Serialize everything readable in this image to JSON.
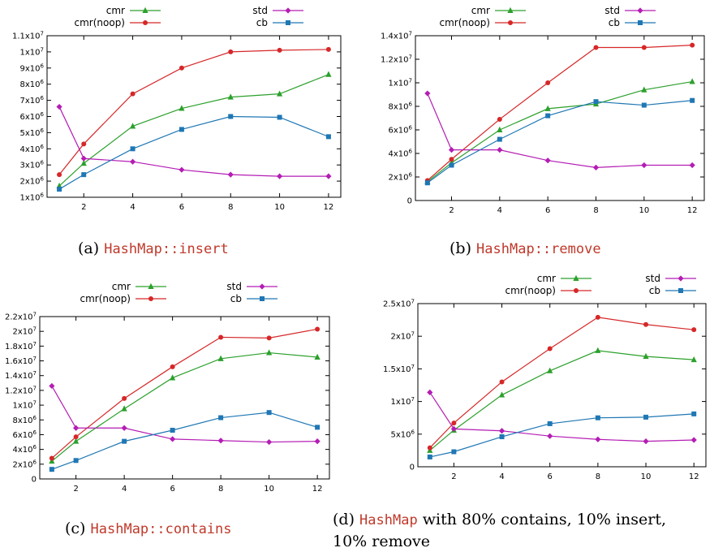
{
  "colors": {
    "cmr": "#2ca02c",
    "cmr(noop)": "#d62728",
    "std": "#b41db4",
    "cb": "#1f77b4",
    "code": "#c0392b"
  },
  "captions": {
    "a": {
      "prefix": "(a)",
      "code": "HashMap::insert",
      "rest": ""
    },
    "b": {
      "prefix": "(b)",
      "code": "HashMap::remove",
      "rest": ""
    },
    "c": {
      "prefix": "(c)",
      "code": "HashMap::contains",
      "rest": ""
    },
    "d": {
      "prefix": "(d)",
      "code": "HashMap",
      "rest": "with 80% contains, 10% insert, 10% remove"
    }
  },
  "chart_data": [
    {
      "id": "a",
      "type": "line",
      "x": [
        1,
        2,
        4,
        6,
        8,
        10,
        12
      ],
      "xticks": [
        2,
        4,
        6,
        8,
        10,
        12
      ],
      "xlim": [
        0.5,
        12.5
      ],
      "ylim": [
        1000000,
        11000000
      ],
      "yticks": [
        1000000,
        2000000,
        3000000,
        4000000,
        5000000,
        6000000,
        7000000,
        8000000,
        9000000,
        10000000,
        11000000
      ],
      "yticklabels": [
        "1x10^6",
        "2x10^6",
        "3x10^6",
        "4x10^6",
        "5x10^6",
        "6x10^6",
        "7x10^6",
        "8x10^6",
        "9x10^6",
        "1x10^7",
        "1.1x10^7"
      ],
      "legend_placement": "top",
      "series": [
        {
          "name": "cmr",
          "marker": "triangle",
          "values": [
            1700000,
            3100000,
            5400000,
            6500000,
            7200000,
            7400000,
            8600000
          ]
        },
        {
          "name": "cmr(noop)",
          "marker": "circle",
          "values": [
            2400000,
            4300000,
            7400000,
            9000000,
            10000000,
            10100000,
            10150000
          ]
        },
        {
          "name": "std",
          "marker": "diamond",
          "values": [
            6600000,
            3400000,
            3200000,
            2700000,
            2400000,
            2300000,
            2300000
          ]
        },
        {
          "name": "cb",
          "marker": "square",
          "values": [
            1500000,
            2400000,
            4000000,
            5200000,
            6000000,
            5950000,
            4750000
          ]
        }
      ]
    },
    {
      "id": "b",
      "type": "line",
      "x": [
        1,
        2,
        4,
        6,
        8,
        10,
        12
      ],
      "xticks": [
        2,
        4,
        6,
        8,
        10,
        12
      ],
      "xlim": [
        0.5,
        12.5
      ],
      "ylim": [
        0,
        14000000
      ],
      "yticks": [
        0,
        2000000,
        4000000,
        6000000,
        8000000,
        10000000,
        12000000,
        14000000
      ],
      "yticklabels": [
        "0",
        "2x10^6",
        "4x10^6",
        "6x10^6",
        "8x10^6",
        "1x10^7",
        "1.2x10^7",
        "1.4x10^7"
      ],
      "legend_placement": "top",
      "series": [
        {
          "name": "cmr",
          "marker": "triangle",
          "values": [
            1600000,
            3200000,
            6000000,
            7800000,
            8200000,
            9400000,
            10100000
          ]
        },
        {
          "name": "cmr(noop)",
          "marker": "circle",
          "values": [
            1700000,
            3500000,
            6900000,
            10000000,
            13000000,
            13000000,
            13200000
          ]
        },
        {
          "name": "std",
          "marker": "diamond",
          "values": [
            9100000,
            4300000,
            4300000,
            3400000,
            2800000,
            3000000,
            3000000
          ]
        },
        {
          "name": "cb",
          "marker": "square",
          "values": [
            1500000,
            3000000,
            5200000,
            7200000,
            8400000,
            8100000,
            8500000
          ]
        }
      ]
    },
    {
      "id": "c",
      "type": "line",
      "x": [
        1,
        2,
        4,
        6,
        8,
        10,
        12
      ],
      "xticks": [
        2,
        4,
        6,
        8,
        10,
        12
      ],
      "xlim": [
        0.5,
        12.5
      ],
      "ylim": [
        0,
        22000000
      ],
      "yticks": [
        0,
        2000000,
        4000000,
        6000000,
        8000000,
        10000000,
        12000000,
        14000000,
        16000000,
        18000000,
        20000000,
        22000000
      ],
      "yticklabels": [
        "0",
        "2x10^6",
        "4x10^6",
        "6x10^6",
        "8x10^6",
        "1x10^7",
        "1.2x10^7",
        "1.4x10^7",
        "1.6x10^7",
        "1.8x10^7",
        "2x10^7",
        "2.2x10^7"
      ],
      "legend_placement": "top",
      "series": [
        {
          "name": "cmr",
          "marker": "triangle",
          "values": [
            2400000,
            5100000,
            9500000,
            13700000,
            16300000,
            17100000,
            16500000
          ]
        },
        {
          "name": "cmr(noop)",
          "marker": "circle",
          "values": [
            2800000,
            5700000,
            10900000,
            15200000,
            19200000,
            19100000,
            20300000
          ]
        },
        {
          "name": "std",
          "marker": "diamond",
          "values": [
            12600000,
            6900000,
            6900000,
            5400000,
            5200000,
            5000000,
            5100000
          ]
        },
        {
          "name": "cb",
          "marker": "square",
          "values": [
            1300000,
            2500000,
            5100000,
            6600000,
            8300000,
            9000000,
            7000000
          ]
        }
      ]
    },
    {
      "id": "d",
      "type": "line",
      "x": [
        1,
        2,
        4,
        6,
        8,
        10,
        12
      ],
      "xticks": [
        2,
        4,
        6,
        8,
        10,
        12
      ],
      "xlim": [
        0.5,
        12.5
      ],
      "ylim": [
        0,
        25000000
      ],
      "yticks": [
        0,
        5000000,
        10000000,
        15000000,
        20000000,
        25000000
      ],
      "yticklabels": [
        "0",
        "5x10^6",
        "1x10^7",
        "1.5x10^7",
        "2x10^7",
        "2.5x10^7"
      ],
      "legend_placement": "top",
      "series": [
        {
          "name": "cmr",
          "marker": "triangle",
          "values": [
            2500000,
            5600000,
            11000000,
            14700000,
            17800000,
            16900000,
            16400000
          ]
        },
        {
          "name": "cmr(noop)",
          "marker": "circle",
          "values": [
            2900000,
            6700000,
            13000000,
            18100000,
            22900000,
            21800000,
            21000000
          ]
        },
        {
          "name": "std",
          "marker": "diamond",
          "values": [
            11400000,
            5800000,
            5500000,
            4700000,
            4200000,
            3900000,
            4100000
          ]
        },
        {
          "name": "cb",
          "marker": "square",
          "values": [
            1500000,
            2300000,
            4600000,
            6600000,
            7500000,
            7600000,
            8100000
          ]
        }
      ]
    }
  ]
}
